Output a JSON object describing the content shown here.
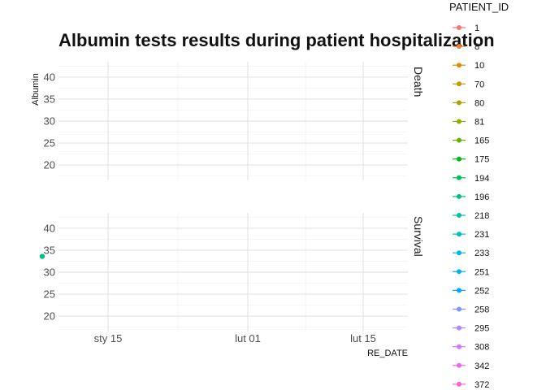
{
  "chart_data": {
    "type": "scatter",
    "title": "Albumin tests results during patient hospitalization",
    "xlabel": "RE_DATE",
    "ylabel": "Albumin",
    "x_ticks": [
      "sty 15",
      "lut 01",
      "lut 15"
    ],
    "y_ticks": [
      20,
      25,
      30,
      35,
      40
    ],
    "ylim": [
      16.5,
      43.5
    ],
    "grid": true,
    "legend_position": "right",
    "legend_title": "PATIENT_ID",
    "facets": [
      "Death",
      "Survival"
    ],
    "series": [
      {
        "name": "1",
        "color": "#F8766D"
      },
      {
        "name": "8",
        "color": "#EC8239"
      },
      {
        "name": "10",
        "color": "#DB8E00"
      },
      {
        "name": "70",
        "color": "#C79800"
      },
      {
        "name": "80",
        "color": "#AEA200"
      },
      {
        "name": "81",
        "color": "#8FAA00"
      },
      {
        "name": "165",
        "color": "#64B200"
      },
      {
        "name": "175",
        "color": "#00B81B"
      },
      {
        "name": "194",
        "color": "#00BD5C"
      },
      {
        "name": "196",
        "color": "#00C085"
      },
      {
        "name": "218",
        "color": "#00C1A7"
      },
      {
        "name": "231",
        "color": "#00BFC4"
      },
      {
        "name": "233",
        "color": "#00BADE"
      },
      {
        "name": "251",
        "color": "#00B2F3"
      },
      {
        "name": "252",
        "color": "#00A6FF"
      },
      {
        "name": "258",
        "color": "#7C96FF"
      },
      {
        "name": "295",
        "color": "#B385FF"
      },
      {
        "name": "308",
        "color": "#D874FD"
      },
      {
        "name": "342",
        "color": "#EF67EB"
      },
      {
        "name": "372",
        "color": "#FD61D3"
      }
    ],
    "points": [
      {
        "facet": "Survival",
        "x_day": -8,
        "y": 33.6,
        "color": "#00C085"
      }
    ]
  }
}
